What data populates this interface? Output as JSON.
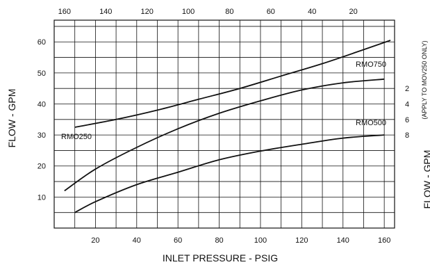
{
  "chart_data": {
    "type": "line",
    "xlabel": "INLET PRESSURE - PSIG",
    "ylabel": "FLOW - GPM",
    "xlim": [
      0,
      165
    ],
    "ylim": [
      0,
      67
    ],
    "x_ticks": [
      20,
      40,
      60,
      80,
      100,
      120,
      140,
      160
    ],
    "y_ticks": [
      10,
      20,
      30,
      40,
      50,
      60
    ],
    "top_axis": {
      "ticks": [
        160,
        140,
        120,
        100,
        80,
        60,
        40,
        20
      ]
    },
    "right_axis": {
      "label": "FLOW - GPM",
      "note": "(APPLY TO MOV250 ONLY)",
      "ticks": [
        2,
        4,
        6,
        8
      ]
    },
    "grid": true,
    "series": [
      {
        "name": "RMO250",
        "x": [
          10,
          30,
          50,
          70,
          90,
          110,
          130,
          150,
          163
        ],
        "y": [
          32.5,
          35,
          38,
          41.5,
          45,
          49,
          53,
          57.5,
          60.5
        ]
      },
      {
        "name": "RMO750",
        "x": [
          5,
          20,
          40,
          60,
          80,
          100,
          120,
          140,
          160
        ],
        "y": [
          12,
          19,
          26,
          32,
          37,
          41,
          44.5,
          46.8,
          48
        ]
      },
      {
        "name": "RMO500",
        "x": [
          10,
          20,
          40,
          60,
          80,
          100,
          120,
          140,
          160
        ],
        "y": [
          5,
          8.5,
          14,
          18,
          22,
          24.8,
          27,
          29,
          30
        ]
      }
    ]
  }
}
